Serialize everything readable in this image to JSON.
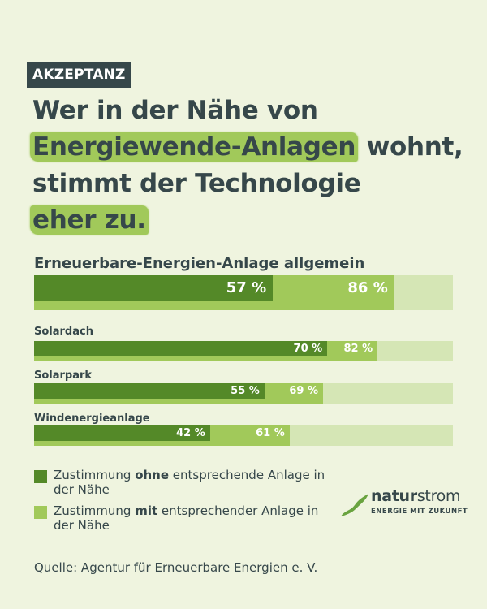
{
  "tag": "AKZEPTANZ",
  "headline": {
    "line1": "Wer in der Nähe von",
    "line2_highlight": "Energiewende-Anlagen",
    "line2_rest": " wohnt,",
    "line3": "stimmt der Technologie",
    "line4_highlight": "eher zu."
  },
  "colors": {
    "background": "#eff4df",
    "dark_green": "#548928",
    "light_green": "#a1c95a",
    "track": "#d5e6b5",
    "text": "#36474a"
  },
  "chart_data": {
    "type": "bar",
    "orientation": "horizontal",
    "title": "Wer in der Nähe von Energiewende-Anlagen wohnt, stimmt der Technologie eher zu.",
    "categories": [
      "Erneuerbare-Energien-Anlage allgemein",
      "Solardach",
      "Solarpark",
      "Windenergieanlage"
    ],
    "series": [
      {
        "name": "Zustimmung ohne entsprechende Anlage in der Nähe",
        "values": [
          57,
          70,
          55,
          42
        ],
        "labels": [
          "57 %",
          "70 %",
          "55 %",
          "42 %"
        ]
      },
      {
        "name": "Zustimmung mit entsprechender Anlage in der Nähe",
        "values": [
          86,
          82,
          69,
          61
        ],
        "labels": [
          "86 %",
          "82 %",
          "69 %",
          "61 %"
        ]
      }
    ],
    "xlim": [
      0,
      100
    ],
    "unit": "%",
    "grid": false,
    "legend_position": "bottom-left"
  },
  "legend": {
    "items": [
      {
        "pre": "Zustimmung ",
        "bold": "ohne",
        "post": " entsprechende Anlage in der Nähe"
      },
      {
        "pre": "Zustimmung ",
        "bold": "mit",
        "post": " entsprechender Anlage in der Nähe"
      }
    ]
  },
  "logo": {
    "brand_bold": "natur",
    "brand_thin": "strom",
    "tagline": "ENERGIE MIT ZUKUNFT"
  },
  "source": "Quelle: Agentur für Erneuerbare Energien e. V."
}
